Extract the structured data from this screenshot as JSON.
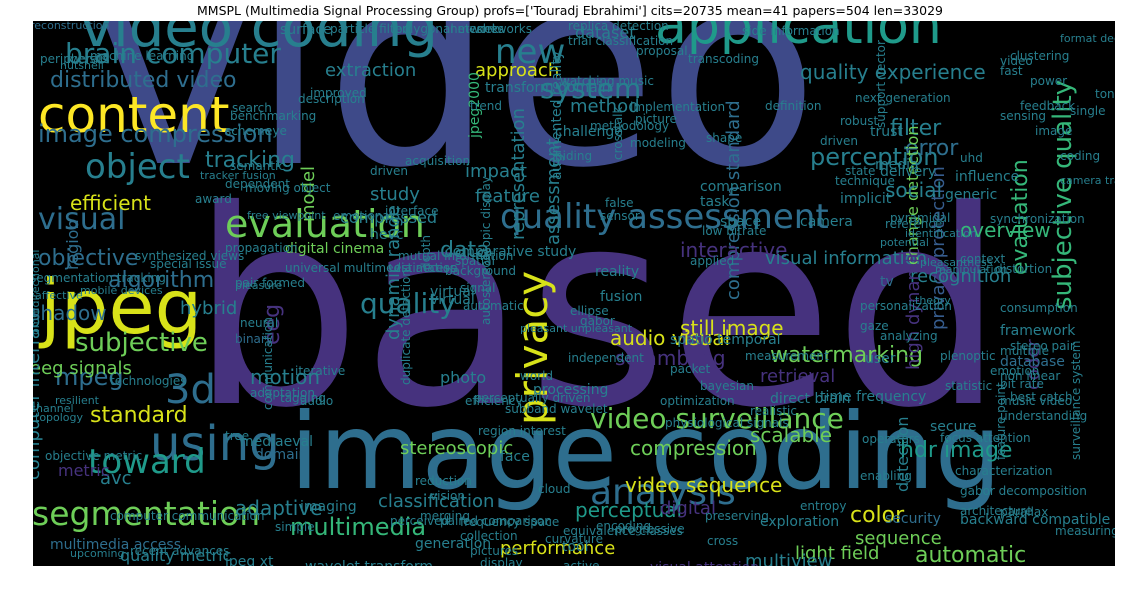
{
  "title": "MMSPL (Multimedia Signal Processing Group) profs=['Touradj Ebrahimi'] cits=20735 mean=41 papers=504 len=33029",
  "palette": {
    "background": "#000000",
    "deep_purple": "#46327e",
    "indigo": "#3e4a89",
    "blue": "#365c8d",
    "steel": "#2e6e8e",
    "teal": "#277f8e",
    "sea": "#1f9a8a",
    "green": "#35b779",
    "lime": "#6ece58",
    "yellow": "#d8e219",
    "bright": "#fde725"
  },
  "words": {
    "w01": "video",
    "w02": "based",
    "w03": "image coding",
    "w04": "video coding",
    "w05": "application",
    "w06": "content",
    "w07": "jpeg",
    "w08": "quality assessment",
    "w09": "evaluation",
    "w10": "using",
    "w11": "segmentation",
    "w12": "privacy",
    "w13": "analysis",
    "w14": "subjective quality",
    "w15": "brain computer",
    "w16": "new",
    "w17": "image compression",
    "w18": "distributed video",
    "w19": "object",
    "w20": "3d",
    "w21": "toward",
    "w22": "visual",
    "w23": "subjective",
    "w24": "system",
    "w25": "compression standard",
    "w26": "quality experience",
    "w27": "video surveillance",
    "w28": "multimedia",
    "w29": "standard",
    "w30": "mpeg",
    "w31": "eeg signals",
    "w32": "computer interface",
    "w33": "tracking",
    "w34": "efficient",
    "w35": "objective",
    "w36": "algorithm",
    "w37": "quality",
    "w38": "still image",
    "w39": "audio visual",
    "w40": "data",
    "w41": "interactive",
    "w42": "visual information",
    "w43": "perception",
    "w44": "filter",
    "w45": "error",
    "w46": "privacy protection",
    "w47": "change detection",
    "w48": "evaluation",
    "w49": "social",
    "w50": "overview",
    "w51": "recognition",
    "w52": "watermarking",
    "w53": "retrieval",
    "w54": "scrambling",
    "w55": "hdr image",
    "w56": "compression",
    "w57": "video sequence",
    "w58": "color",
    "w59": "perceptual",
    "w60": "classification",
    "w61": "performance",
    "w62": "light field",
    "w63": "automatic",
    "w64": "multiview",
    "w65": "visual attention",
    "w66": "sequence",
    "w67": "stereoscopic",
    "w68": "scalable",
    "w69": "dynamic range",
    "w70": "motion",
    "w71": "adaptive",
    "w72": "quality metric",
    "w73": "multimedia access",
    "w74": "avc",
    "w75": "metric",
    "w76": "approach",
    "w77": "extraction",
    "w78": "dataset",
    "w79": "method",
    "w80": "impact",
    "w81": "feature",
    "w82": "study",
    "w83": "model",
    "w84": "jpeg2000",
    "w85": "assessment",
    "w86": "representation",
    "w87": "shadow",
    "w88": "eeg",
    "w89": "hybrid",
    "w90": "region",
    "w91": "compressed",
    "w92": "digital cinema",
    "w93": "hevc",
    "w94": "security",
    "w95": "detection",
    "w96": "digital",
    "w97": "photo",
    "w98": "processing",
    "w99": "coder",
    "w100": "high dynamic",
    "w101": "framework",
    "w102": "database",
    "w103": "surface",
    "w104": "particle filter",
    "w105": "replica detection",
    "w106": "reconstruction",
    "w107": "segmentation tracking",
    "w108": "special issue",
    "w109": "communication",
    "w110": "technologies",
    "w111": "tree",
    "w112": "mediaeval",
    "w113": "domain",
    "w114": "face",
    "w115": "jpeg xt",
    "w116": "wavelet transform",
    "w117": "real time",
    "w118": "object duplicate",
    "w119": "time frequency",
    "w120": "physiological signals",
    "w121": "music video",
    "w122": "feature point",
    "w123": "backward compatible",
    "w124": "surveillance system",
    "w125": "secure",
    "w126": "trust",
    "w127": "technique",
    "w128": "task",
    "w129": "comparison",
    "w130": "generic",
    "w131": "implicit",
    "w132": "influence",
    "w133": "delivery",
    "w134": "media",
    "w135": "space",
    "w136": "camera",
    "w137": "low bitrate",
    "w138": "challenge",
    "w139": "picture",
    "w140": "modeling",
    "w141": "network",
    "w142": "proposal",
    "w143": "shape",
    "w144": "emotion",
    "w145": "user",
    "w146": "multiple",
    "w147": "packet",
    "w148": "fusion",
    "w149": "spatio temporal",
    "w150": "tv",
    "w151": "distortion",
    "w152": "context",
    "w153": "binary",
    "w154": "tagging",
    "w155": "adaptation",
    "w156": "iterative",
    "w157": "neural",
    "w158": "audio",
    "w159": "virtual",
    "w160": "reality",
    "w161": "signal",
    "w162": "depth",
    "w163": "mobile devices",
    "w164": "affective",
    "w165": "pleasure",
    "w166": "objective metric",
    "w167": "recent advances",
    "w168": "computer communication",
    "w169": "imaging",
    "w170": "simple",
    "w171": "vector classifier",
    "w172": "generation",
    "w173": "frequency space",
    "w174": "encoding",
    "w175": "tool",
    "w176": "exploration",
    "w177": "side information",
    "w178": "definition",
    "w179": "methodology",
    "w180": "trend",
    "w181": "transform domain",
    "w182": "implementation",
    "w183": "networks",
    "w184": "polygonal meshes",
    "w185": "trial classification",
    "w186": "watching music",
    "w187": "improved",
    "w188": "description",
    "w189": "search",
    "w190": "scheme",
    "w191": "eye",
    "w192": "semantic",
    "w193": "tracker fusion",
    "w194": "synthesized views",
    "w195": "propagation",
    "w196": "pair formed",
    "w197": "bit rate",
    "w198": "best catch",
    "w199": "focus attention",
    "w200": "understanding",
    "w201": "pyramidal",
    "w202": "synchronization",
    "w203": "reference",
    "w204": "identification",
    "w205": "potential",
    "w206": "pleasantness",
    "w207": "manipulation",
    "w208": "theory",
    "w209": "versus",
    "w210": "peripheral",
    "w211": "machine learning",
    "w212": "nutshell",
    "w213": "benchmarking",
    "w214": "free viewpoint",
    "w215": "award",
    "w216": "moving object",
    "w217": "dependent",
    "w218": "universal multimedia access",
    "w219": "estimation",
    "w220": "mutual information",
    "w221": "background",
    "w222": "comparative study",
    "w223": "spatial",
    "w224": "automatic",
    "w225": "pleasant unpleasant",
    "w226": "autostereoscopic display",
    "w227": "independent",
    "w228": "duplicate detection",
    "w229": "perceptually driven",
    "w230": "subband wavelet",
    "w231": "efficiency",
    "w232": "region interest",
    "w233": "preserving",
    "w234": "equivalence classes",
    "w235": "progressive",
    "w236": "curvature",
    "w237": "grid",
    "w238": "linear dependence",
    "w239": "graph",
    "w240": "multi",
    "w241": "jets",
    "w242": "channel",
    "w243": "omnidirectional",
    "w244": "resilient",
    "w245": "topology",
    "w246": "upcoming",
    "w247": "transcoding",
    "w248": "cloud",
    "w249": "operators",
    "w250": "gabor decomposition",
    "w251": "characterization",
    "w252": "architecture",
    "w253": "parallax",
    "w254": "summarization",
    "w255": "measuring",
    "w256": "consumption",
    "w257": "uhd",
    "w258": "next generation",
    "w259": "robust",
    "w260": "support vector",
    "w261": "state",
    "w262": "driven",
    "w263": "sensing",
    "w264": "single",
    "w265": "tone",
    "w266": "feedback",
    "w267": "clustering",
    "w268": "fast",
    "w269": "power",
    "w270": "video",
    "w271": "image",
    "w272": "coding",
    "w273": "camera tracker",
    "w274": "format decoded",
    "w275": "active",
    "w276": "display",
    "w277": "perceived",
    "w278": "cross",
    "w279": "entropy",
    "w280": "crosstalk",
    "w281": "augmented reality",
    "w282": "false",
    "w283": "sensor",
    "w284": "applied",
    "w285": "hiding",
    "w286": "non linear",
    "w287": "stereo pair",
    "w288": "enabling",
    "w289": "direct brain",
    "w290": "bayesian",
    "w291": "world",
    "w292": "optimization",
    "w293": "realistic",
    "w294": "measurement",
    "w295": "personalization",
    "w296": "virtual",
    "w297": "gabor",
    "w298": "ellipse",
    "w299": "emotional",
    "w300": "interface",
    "w301": "driven",
    "w302": "acquisition",
    "w303": "reduction",
    "w304": "vision",
    "w305": "merging",
    "w306": "paired comparison",
    "w307": "collection",
    "w308": "pictures",
    "w309": "gaze",
    "w310": "analyzing",
    "w311": "plenoptic",
    "w312": "statistic"
  }
}
